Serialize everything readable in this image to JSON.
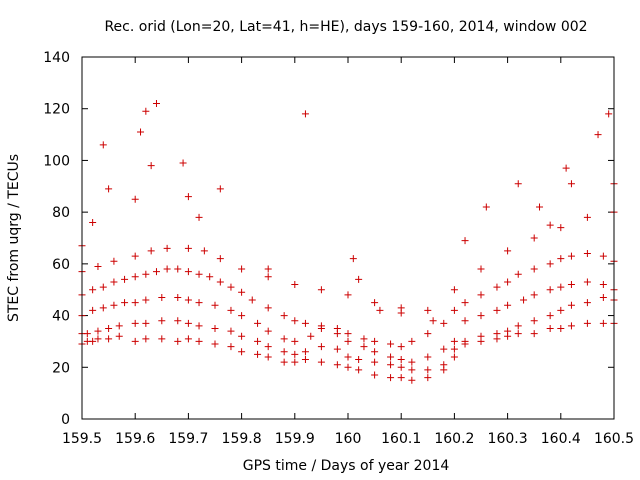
{
  "chart_data": {
    "type": "scatter",
    "title": "Rec. orid (Lon=20, Lat=41, h=HE), days 159-160, 2014, window 002",
    "xlabel": "GPS time / Days of year 2014",
    "ylabel": "STEC from uqrg / TECUs",
    "xlim": [
      159.5,
      160.5
    ],
    "ylim": [
      0,
      140
    ],
    "xticks": [
      "159.5",
      "159.6",
      "159.7",
      "159.8",
      "159.9",
      "160",
      "160.1",
      "160.2",
      "160.3",
      "160.4",
      "160.5"
    ],
    "yticks": [
      "0",
      "20",
      "40",
      "60",
      "80",
      "100",
      "120",
      "140"
    ],
    "grid": false,
    "marker": "+",
    "color": "#cc0000",
    "series": [
      {
        "x": [
          159.5,
          159.51,
          159.52,
          159.53,
          159.55,
          159.57,
          159.6,
          159.62,
          159.65,
          159.68,
          159.7,
          159.72,
          159.75,
          159.78,
          159.8,
          159.83,
          159.85,
          159.88,
          159.9,
          159.92,
          159.95,
          159.98,
          160.0,
          160.02,
          160.05,
          160.08,
          160.1,
          160.12,
          160.15,
          160.18,
          160.2,
          160.22,
          160.25,
          160.28,
          160.3,
          160.32,
          160.35,
          160.38,
          160.4,
          160.42,
          160.45,
          160.48,
          160.5
        ],
        "y": [
          29,
          30,
          30,
          31,
          31,
          32,
          30,
          31,
          31,
          30,
          31,
          30,
          29,
          28,
          26,
          25,
          24,
          22,
          22,
          23,
          22,
          21,
          20,
          19,
          17,
          16,
          16,
          15,
          16,
          19,
          27,
          29,
          30,
          31,
          32,
          33,
          33,
          35,
          35,
          36,
          37,
          37,
          37
        ]
      },
      {
        "x": [
          159.5,
          159.51,
          159.53,
          159.55,
          159.57,
          159.6,
          159.62,
          159.65,
          159.68,
          159.7,
          159.72,
          159.75,
          159.78,
          159.8,
          159.83,
          159.85,
          159.88,
          159.9,
          159.92,
          159.95,
          159.98,
          160.0,
          160.02,
          160.05,
          160.08,
          160.1,
          160.12,
          160.15,
          160.18,
          160.2,
          160.22,
          160.25,
          160.28,
          160.3,
          160.32,
          160.35,
          160.38,
          160.4,
          160.42,
          160.45,
          160.48,
          160.5
        ],
        "y": [
          33,
          33,
          34,
          35,
          36,
          37,
          37,
          38,
          38,
          37,
          36,
          35,
          34,
          32,
          30,
          28,
          26,
          25,
          26,
          28,
          27,
          24,
          23,
          22,
          21,
          20,
          19,
          19,
          21,
          24,
          30,
          32,
          33,
          34,
          36,
          38,
          40,
          42,
          44,
          45,
          47,
          46
        ]
      },
      {
        "x": [
          159.5,
          159.52,
          159.54,
          159.56,
          159.58,
          159.6,
          159.62,
          159.65,
          159.68,
          159.7,
          159.72,
          159.75,
          159.78,
          159.8,
          159.83,
          159.85,
          159.88,
          159.9,
          159.93,
          159.95,
          159.98,
          160.0,
          160.03,
          160.05,
          160.08,
          160.1,
          160.12,
          160.15,
          160.18,
          160.2,
          160.22,
          160.25,
          160.28,
          160.3,
          160.33,
          160.35,
          160.38,
          160.4,
          160.42,
          160.45,
          160.48,
          160.5
        ],
        "y": [
          40,
          42,
          43,
          44,
          45,
          45,
          46,
          47,
          47,
          46,
          45,
          44,
          42,
          40,
          37,
          34,
          31,
          30,
          32,
          35,
          33,
          30,
          28,
          26,
          24,
          23,
          22,
          24,
          27,
          30,
          38,
          40,
          42,
          44,
          46,
          48,
          50,
          51,
          52,
          53,
          52,
          50
        ]
      },
      {
        "x": [
          159.5,
          159.52,
          159.54,
          159.56,
          159.58,
          159.6,
          159.62,
          159.64,
          159.66,
          159.68,
          159.7,
          159.72,
          159.74,
          159.76,
          159.78,
          159.8,
          159.82,
          159.85,
          159.88,
          159.9,
          159.92,
          159.95,
          159.98,
          160.0,
          160.03,
          160.05,
          160.08,
          160.1,
          160.12,
          160.15,
          160.18,
          160.2,
          160.22,
          160.25,
          160.28,
          160.3,
          160.32,
          160.35,
          160.38,
          160.4,
          160.42,
          160.45,
          160.48,
          160.5
        ],
        "y": [
          48,
          50,
          51,
          53,
          54,
          55,
          56,
          57,
          58,
          58,
          57,
          56,
          55,
          53,
          51,
          49,
          46,
          43,
          40,
          38,
          37,
          36,
          35,
          33,
          31,
          30,
          29,
          28,
          30,
          33,
          37,
          42,
          45,
          48,
          51,
          53,
          56,
          58,
          60,
          62,
          63,
          64,
          63,
          61
        ]
      },
      {
        "x": [
          159.5,
          159.53,
          159.56,
          159.6,
          159.63,
          159.66,
          159.7,
          159.73,
          159.76,
          159.8,
          159.85,
          159.9,
          159.95,
          160.0,
          160.05,
          160.1,
          160.15,
          160.2,
          160.25,
          160.3,
          160.35,
          160.4,
          160.45,
          160.5
        ],
        "y": [
          57,
          59,
          61,
          63,
          65,
          66,
          66,
          65,
          62,
          58,
          55,
          52,
          50,
          48,
          45,
          43,
          42,
          50,
          58,
          65,
          70,
          74,
          78,
          80
        ]
      },
      {
        "x": [
          159.5,
          159.52,
          159.54,
          159.55,
          159.6,
          159.61,
          159.62,
          159.63,
          159.64,
          159.69,
          159.7,
          159.72,
          159.76,
          159.85,
          159.92,
          160.01,
          160.02,
          160.06,
          160.1,
          160.16,
          160.22,
          160.26,
          160.32,
          160.36,
          160.38,
          160.41,
          160.42,
          160.47,
          160.49,
          160.5
        ],
        "y": [
          67,
          76,
          106,
          89,
          85,
          111,
          119,
          98,
          122,
          99,
          86,
          78,
          89,
          58,
          118,
          62,
          54,
          42,
          41,
          38,
          69,
          82,
          91,
          82,
          75,
          97,
          91,
          110,
          118,
          91
        ]
      }
    ]
  }
}
